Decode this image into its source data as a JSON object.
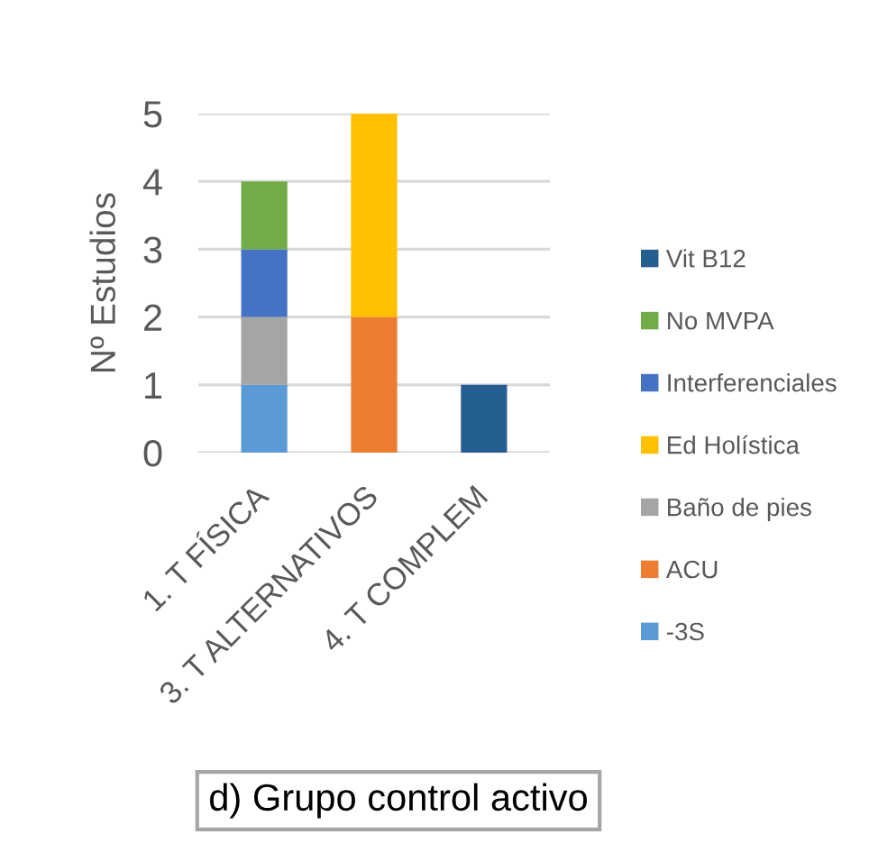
{
  "chart_data": {
    "type": "bar",
    "stacked": true,
    "title": "d) Grupo control activo",
    "ylabel": "Nº Estudios",
    "categories": [
      "1. T FÍSICA",
      "3. T ALTERNATIVOS",
      "4. T COMPLEM"
    ],
    "series": [
      {
        "name": "-3S",
        "color": "#5b9bd5",
        "values": [
          1,
          null,
          null
        ]
      },
      {
        "name": "ACU",
        "color": "#ed7d31",
        "values": [
          null,
          2,
          null
        ]
      },
      {
        "name": "Baño de pies",
        "color": "#a5a5a5",
        "values": [
          1,
          null,
          null
        ]
      },
      {
        "name": "Ed Holística",
        "color": "#ffc000",
        "values": [
          null,
          3,
          null
        ]
      },
      {
        "name": "Interferenciales",
        "color": "#4472c4",
        "values": [
          1,
          null,
          null
        ]
      },
      {
        "name": "No MVPA",
        "color": "#70ad47",
        "values": [
          1,
          null,
          null
        ]
      },
      {
        "name": "Vit B12",
        "color": "#255e91",
        "values": [
          null,
          null,
          1
        ]
      }
    ],
    "ylim": [
      0,
      5
    ],
    "yticks": [
      0,
      1,
      2,
      3,
      4,
      5
    ],
    "grid": "y",
    "legend": "right"
  }
}
